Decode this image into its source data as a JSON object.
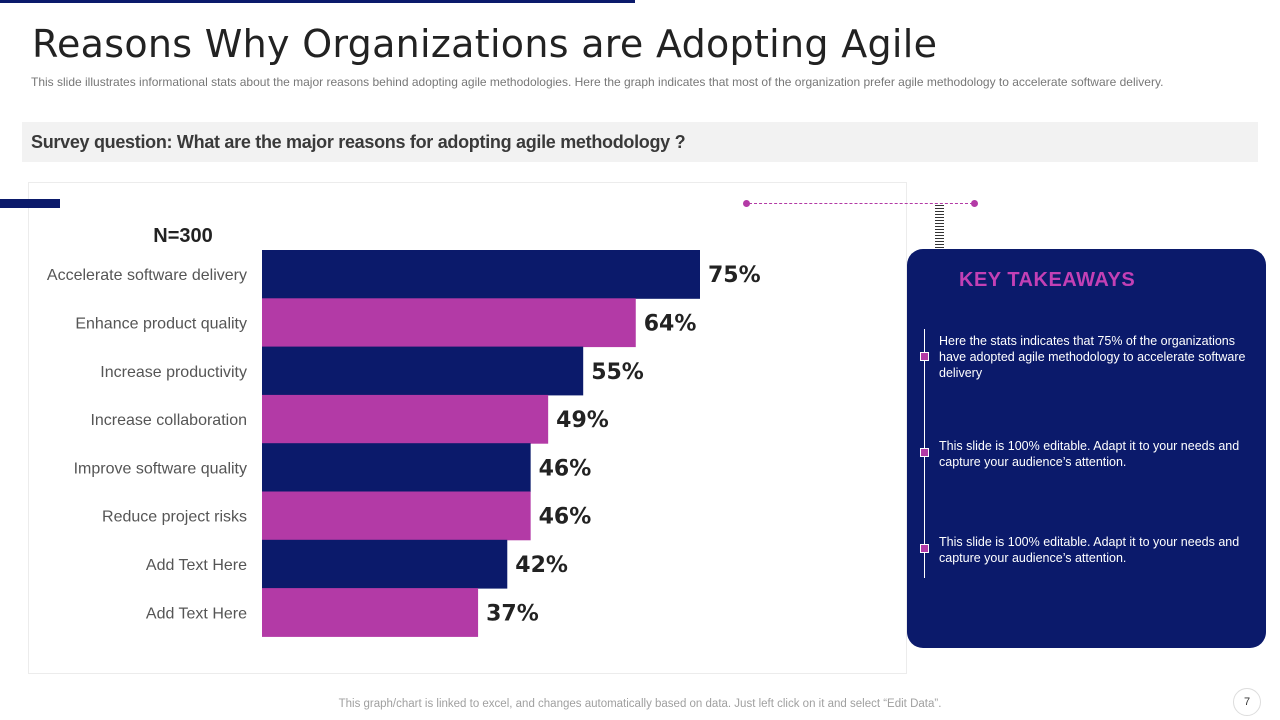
{
  "slide": {
    "title": "Reasons Why Organizations are Adopting Agile",
    "subtitle": "This slide illustrates informational stats about the major reasons behind adopting agile methodologies. Here the graph indicates that most of the organization prefer agile methodology to accelerate software delivery.",
    "survey_question": "Survey question: What are the major reasons for adopting agile methodology ?",
    "footer_note": "This graph/chart is linked to excel,  and changes automatically based on data. Just left click on it and select “Edit Data”.",
    "page_number": "7"
  },
  "takeaways": {
    "title": "KEY TAKEAWAYS",
    "items": [
      "Here the stats indicates that 75% of the organizations have adopted agile methodology to accelerate software delivery",
      "This slide is 100% editable. Adapt it to your needs and capture your audience’s attention.",
      "This slide is 100% editable. Adapt it to your needs and capture your audience’s attention."
    ]
  },
  "colors": {
    "navy": "#0b1a6b",
    "magenta": "#b33aa6",
    "accent_title": "#c340b5"
  },
  "chart_data": {
    "type": "bar",
    "orientation": "horizontal",
    "sample_label": "N=300",
    "categories": [
      "Accelerate software delivery",
      "Enhance product quality",
      "Increase productivity",
      "Increase collaboration",
      "Improve software quality",
      "Reduce project risks",
      "Add Text Here",
      "Add Text Here"
    ],
    "values": [
      75,
      64,
      55,
      49,
      46,
      46,
      42,
      37
    ],
    "value_labels": [
      "75%",
      "64%",
      "55%",
      "49%",
      "46%",
      "46%",
      "42%",
      "37%"
    ],
    "bar_colors": [
      "#0b1a6b",
      "#b33aa6",
      "#0b1a6b",
      "#b33aa6",
      "#0b1a6b",
      "#b33aa6",
      "#0b1a6b",
      "#b33aa6"
    ],
    "unit": "%",
    "xlim": [
      0,
      100
    ],
    "grid": false,
    "legend": "none"
  }
}
